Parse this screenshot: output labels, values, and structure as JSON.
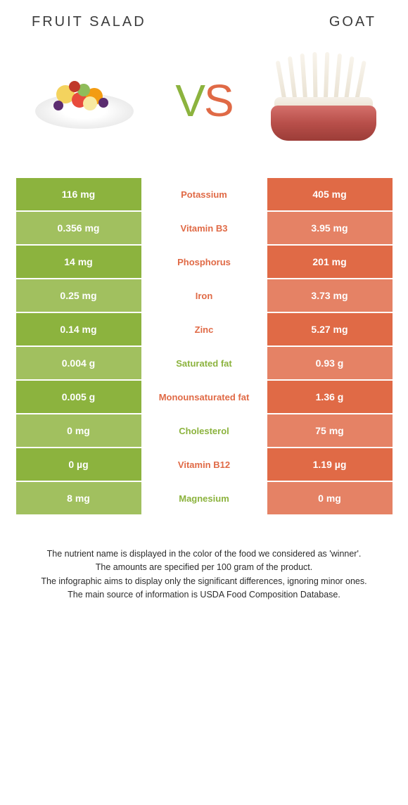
{
  "colors": {
    "green": "#8cb33e",
    "orange": "#e06a46",
    "left_odd": "#8cb33e",
    "left_even": "#a1c05f",
    "right_odd": "#e06a46",
    "right_even": "#e58265"
  },
  "header": {
    "left_title": "Fruit salad",
    "right_title": "Goat"
  },
  "vs": {
    "v": "V",
    "s": "S"
  },
  "rows": [
    {
      "left": "116 mg",
      "label": "Potassium",
      "right": "405 mg",
      "winner": "right"
    },
    {
      "left": "0.356 mg",
      "label": "Vitamin B3",
      "right": "3.95 mg",
      "winner": "right"
    },
    {
      "left": "14 mg",
      "label": "Phosphorus",
      "right": "201 mg",
      "winner": "right"
    },
    {
      "left": "0.25 mg",
      "label": "Iron",
      "right": "3.73 mg",
      "winner": "right"
    },
    {
      "left": "0.14 mg",
      "label": "Zinc",
      "right": "5.27 mg",
      "winner": "right"
    },
    {
      "left": "0.004 g",
      "label": "Saturated fat",
      "right": "0.93 g",
      "winner": "left"
    },
    {
      "left": "0.005 g",
      "label": "Monounsaturated fat",
      "right": "1.36 g",
      "winner": "right"
    },
    {
      "left": "0 mg",
      "label": "Cholesterol",
      "right": "75 mg",
      "winner": "left"
    },
    {
      "left": "0 µg",
      "label": "Vitamin B12",
      "right": "1.19 µg",
      "winner": "right"
    },
    {
      "left": "8 mg",
      "label": "Magnesium",
      "right": "0 mg",
      "winner": "left"
    }
  ],
  "notes": {
    "line1": "The nutrient name is displayed in the color of the food we considered as 'winner'.",
    "line2": "The amounts are specified per 100 gram of the product.",
    "line3": "The infographic aims to display only the significant differences, ignoring minor ones.",
    "line4": "The main source of information is USDA Food Composition Database."
  }
}
